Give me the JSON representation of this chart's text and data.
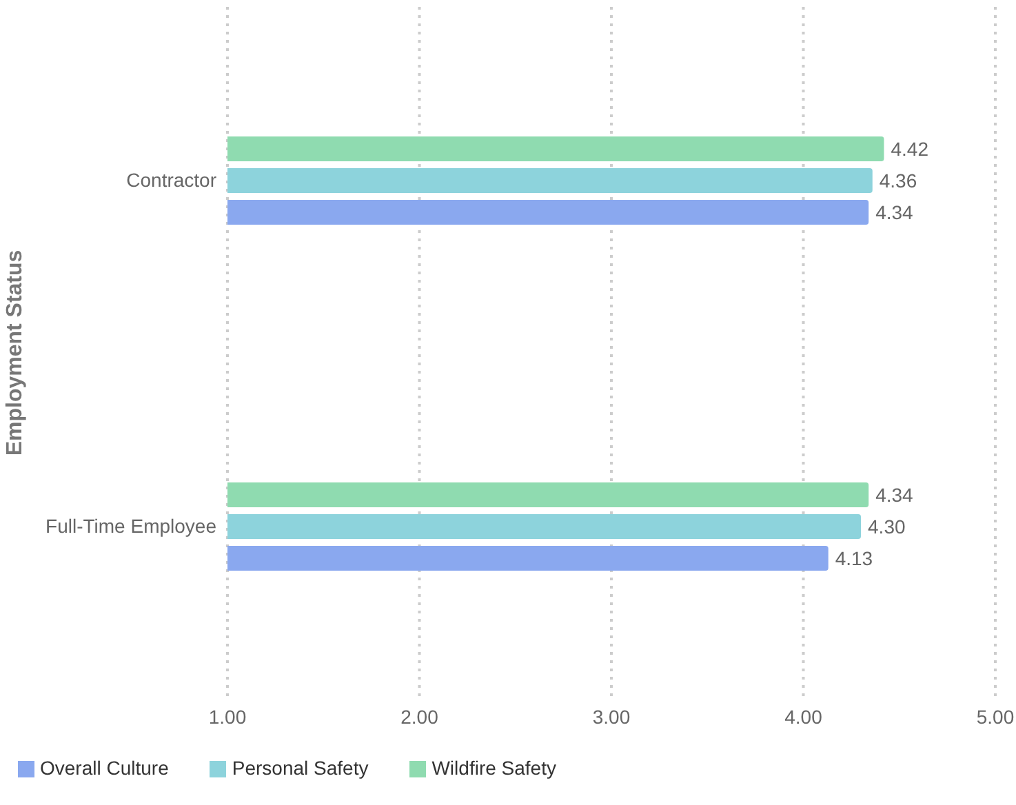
{
  "chart_data": {
    "type": "bar",
    "orientation": "horizontal",
    "ylabel": "Employment Status",
    "categories": [
      "Contractor",
      "Full-Time Employee"
    ],
    "series": [
      {
        "name": "Wildfire Safety",
        "color": "#8fdbb0",
        "values": [
          4.42,
          4.34
        ],
        "value_labels": [
          "4.42",
          "4.34"
        ]
      },
      {
        "name": "Personal Safety",
        "color": "#8dd3dc",
        "values": [
          4.36,
          4.3
        ],
        "value_labels": [
          "4.36",
          "4.30"
        ]
      },
      {
        "name": "Overall Culture",
        "color": "#8aa8ef",
        "values": [
          4.34,
          4.13
        ],
        "value_labels": [
          "4.34",
          "4.13"
        ]
      }
    ],
    "xlim": [
      1,
      5
    ],
    "xticks": [
      {
        "value": 1,
        "label": "1.00"
      },
      {
        "value": 2,
        "label": "2.00"
      },
      {
        "value": 3,
        "label": "3.00"
      },
      {
        "value": 4,
        "label": "4.00"
      },
      {
        "value": 5,
        "label": "5.00"
      }
    ],
    "grid": "x",
    "legend": "bottom left"
  }
}
